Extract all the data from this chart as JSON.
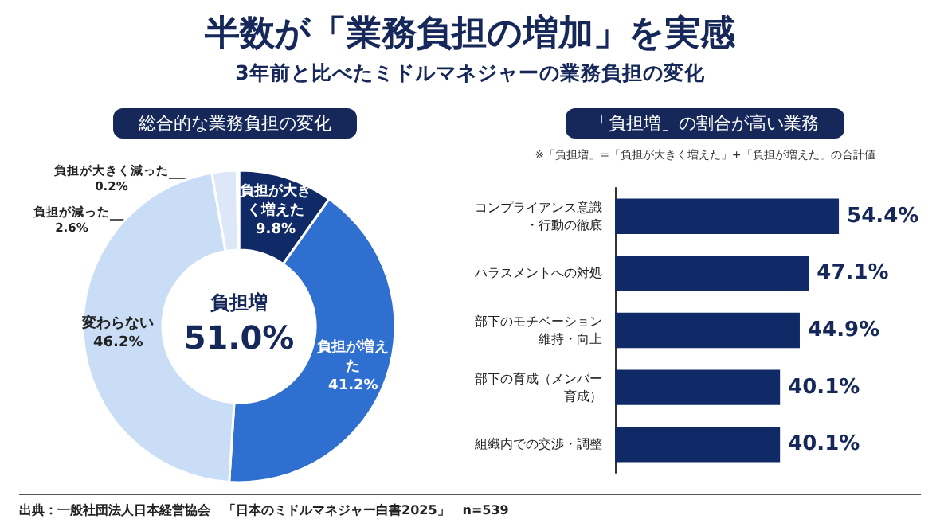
{
  "chart_data": [
    {
      "type": "other",
      "title": "半数が「業務負担の増加」を実感",
      "subtitle": "3年前と比べたミドルマネジャーの業務負担の変化",
      "annotations": [
        "出典：一般社団法人日本経営協会　「日本のミドルマネジャー白書2025」　n=539"
      ]
    },
    {
      "type": "donut",
      "title": "総合的な業務負担の変化",
      "categories": [
        "負担が大きく増えた",
        "負担が増えた",
        "変わらない",
        "負担が減った",
        "負担が大きく減った"
      ],
      "values": [
        9.8,
        41.2,
        46.2,
        2.6,
        0.2
      ],
      "value_labels": [
        "9.8%",
        "41.2%",
        "46.2%",
        "2.6%",
        "0.2%"
      ],
      "colors": [
        "#0f2a66",
        "#2f6fd0",
        "#c9ddf6",
        "#dce8f8",
        "#e9f1fb"
      ],
      "legend": false,
      "annotations": [
        "負担増",
        "51.0%"
      ]
    },
    {
      "type": "bar",
      "orientation": "horizontal",
      "title": "「負担増」の割合が高い業務",
      "subtitle": "※「負担増」=「負担が大きく増えた」+「負担が増えた」の合計値",
      "categories": [
        "コンプライアンス意識・行動の徹底",
        "ハラスメントへの対処",
        "部下のモチベーション維持・向上",
        "部下の育成（メンバー育成）",
        "組織内での交渉・調整"
      ],
      "values": [
        54.4,
        47.1,
        44.9,
        40.1,
        40.1
      ],
      "value_labels": [
        "54.4%",
        "47.1%",
        "44.9%",
        "40.1%",
        "40.1%"
      ],
      "color": "#0f2a66",
      "tick_labels": "y",
      "legend": false
    }
  ]
}
